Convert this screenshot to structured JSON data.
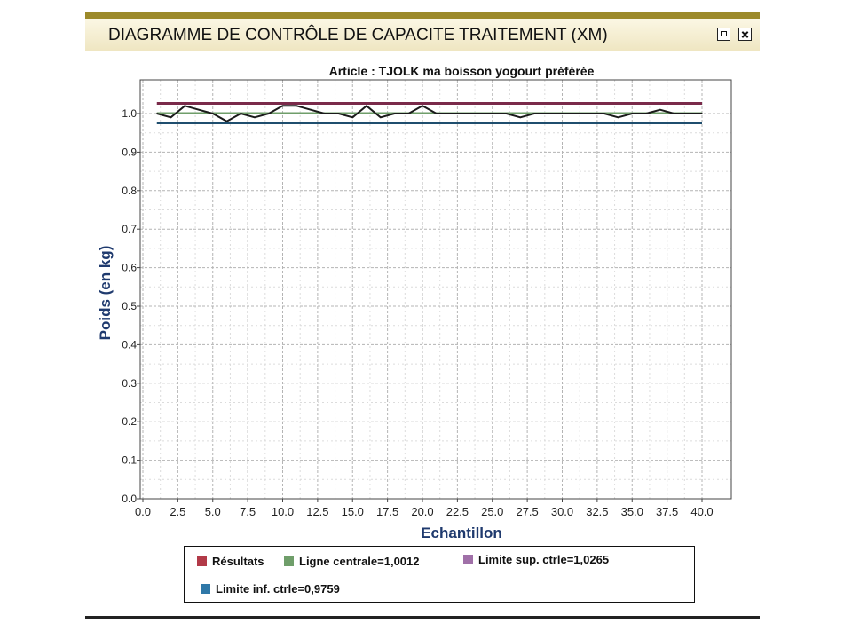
{
  "window": {
    "title": "DIAGRAMME DE CONTRÔLE DE CAPACITE TRAITEMENT (XM)"
  },
  "colors": {
    "titlebar_accent": "#9c8a2a",
    "results": "#1a1a1a",
    "center_line": "#6f9e6a",
    "upper_limit": "#7a2a4a",
    "lower_limit": "#1f4e6e",
    "axis_label": "#1f3a6e"
  },
  "chart_data": {
    "type": "line",
    "title": "Article : TJOLK ma boisson yogourt préférée",
    "xlabel": "Echantillon",
    "ylabel": "Poids (en kg)",
    "xlim": [
      0,
      40
    ],
    "ylim": [
      0,
      1.0
    ],
    "grid": true,
    "x_ticks": [
      "0.0",
      "2.5",
      "5.0",
      "7.5",
      "10.0",
      "12.5",
      "15.0",
      "17.5",
      "20.0",
      "22.5",
      "25.0",
      "27.5",
      "30.0",
      "32.5",
      "35.0",
      "37.5",
      "40.0"
    ],
    "y_ticks": [
      "0.0",
      "0.1",
      "0.2",
      "0.3",
      "0.4",
      "0.5",
      "0.6",
      "0.7",
      "0.8",
      "0.9",
      "1.0"
    ],
    "series": [
      {
        "name": "Résultats",
        "x": [
          1,
          2,
          3,
          4,
          5,
          6,
          7,
          8,
          9,
          10,
          11,
          12,
          13,
          14,
          15,
          16,
          17,
          18,
          19,
          20,
          21,
          22,
          23,
          24,
          25,
          26,
          27,
          28,
          29,
          30,
          31,
          32,
          33,
          34,
          35,
          36,
          37,
          38,
          39,
          40
        ],
        "values": [
          1.0,
          0.99,
          1.02,
          1.01,
          1.0,
          0.98,
          1.0,
          0.99,
          1.0,
          1.02,
          1.02,
          1.01,
          1.0,
          1.0,
          0.99,
          1.02,
          0.99,
          1.0,
          1.0,
          1.02,
          1.0,
          1.0,
          1.0,
          1.0,
          1.0,
          1.0,
          0.99,
          1.0,
          1.0,
          1.0,
          1.0,
          1.0,
          1.0,
          0.99,
          1.0,
          1.0,
          1.01,
          1.0,
          1.0,
          1.0
        ]
      },
      {
        "name": "Ligne centrale=1,0012",
        "value": 1.0012
      },
      {
        "name": "Limite sup. ctrle=1,0265",
        "value": 1.0265
      },
      {
        "name": "Limite inf. ctrle=0,9759",
        "value": 0.9759
      }
    ],
    "legend": {
      "placement": "bottom",
      "items": [
        {
          "label": "Résultats",
          "color": "#b23a48"
        },
        {
          "label": "Ligne centrale=1,0012",
          "color": "#6f9e6a"
        },
        {
          "label": "Limite sup. ctrle=1,0265",
          "color": "#a070a8"
        },
        {
          "label": "Limite inf. ctrle=0,9759",
          "color": "#2f78a8"
        }
      ]
    }
  }
}
